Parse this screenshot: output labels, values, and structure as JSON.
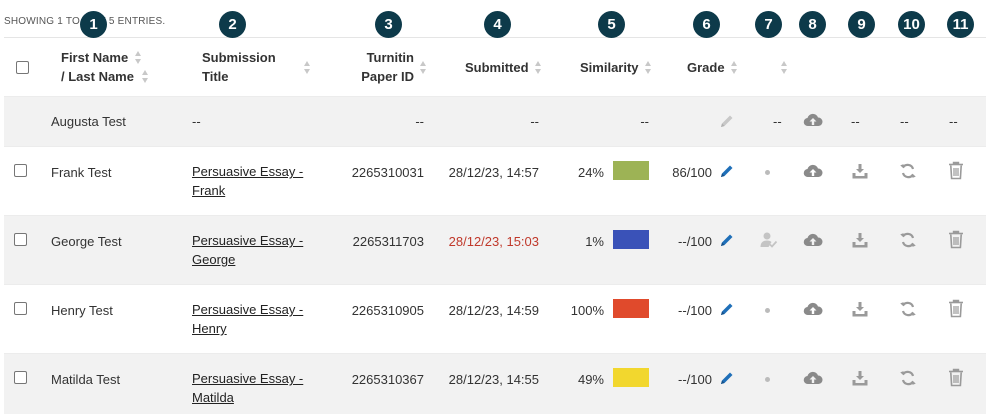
{
  "showing_text": "SHOWING 1 TO 5 OF 5 ENTRIES.",
  "callouts": [
    "1",
    "2",
    "3",
    "4",
    "5",
    "6",
    "7",
    "8",
    "9",
    "10",
    "11"
  ],
  "headers": {
    "name_line1": "First Name",
    "name_line2": "/ Last Name",
    "title_line1": "Submission",
    "title_line2": "Title",
    "paper_line1": "Turnitin",
    "paper_line2": "Paper ID",
    "submitted": "Submitted",
    "similarity": "Similarity",
    "grade": "Grade"
  },
  "rows": [
    {
      "name": "Augusta Test",
      "title_line1": "--",
      "title_line2": "",
      "paper_id": "--",
      "submitted": "--",
      "late": false,
      "similarity": "--",
      "similarity_color": "",
      "grade": "",
      "grade_icon": "pencil-icon-disabled",
      "col7": "--",
      "upload_icon": "cloud-upload-icon",
      "col9": "--",
      "col10": "--",
      "col11": "--"
    },
    {
      "name": "Frank Test",
      "title_line1": "Persuasive Essay -",
      "title_line2": "Frank",
      "paper_id": "2265310031",
      "submitted": "28/12/23, 14:57",
      "late": false,
      "similarity": "24%",
      "similarity_color": "#9db355",
      "grade": "86/100",
      "grade_icon": "pencil-icon",
      "col7": "dot",
      "upload_icon": "cloud-upload-icon"
    },
    {
      "name": "George Test",
      "title_line1": "Persuasive Essay -",
      "title_line2": "George",
      "paper_id": "2265311703",
      "submitted": "28/12/23, 15:03",
      "late": true,
      "similarity": "1%",
      "similarity_color": "#3a52b8",
      "grade": "--/100",
      "grade_icon": "pencil-icon",
      "col7": "student-viewed-icon",
      "upload_icon": "cloud-upload-icon"
    },
    {
      "name": "Henry Test",
      "title_line1": "Persuasive Essay -",
      "title_line2": "Henry",
      "paper_id": "2265310905",
      "submitted": "28/12/23, 14:59",
      "late": false,
      "similarity": "100%",
      "similarity_color": "#e04a2c",
      "grade": "--/100",
      "grade_icon": "pencil-icon",
      "col7": "dot",
      "upload_icon": "cloud-upload-icon"
    },
    {
      "name": "Matilda Test",
      "title_line1": "Persuasive Essay -",
      "title_line2": "Matilda",
      "paper_id": "2265310367",
      "submitted": "28/12/23, 14:55",
      "late": false,
      "similarity": "49%",
      "similarity_color": "#f2d72e",
      "grade": "--/100",
      "grade_icon": "pencil-icon",
      "col7": "dot",
      "upload_icon": "cloud-upload-icon"
    }
  ],
  "colors": {
    "callout_bg": "#0d3a4a",
    "pencil_active": "#1f6fb8",
    "icon_gray": "#9a9a9a",
    "late_red": "#c0392b"
  }
}
